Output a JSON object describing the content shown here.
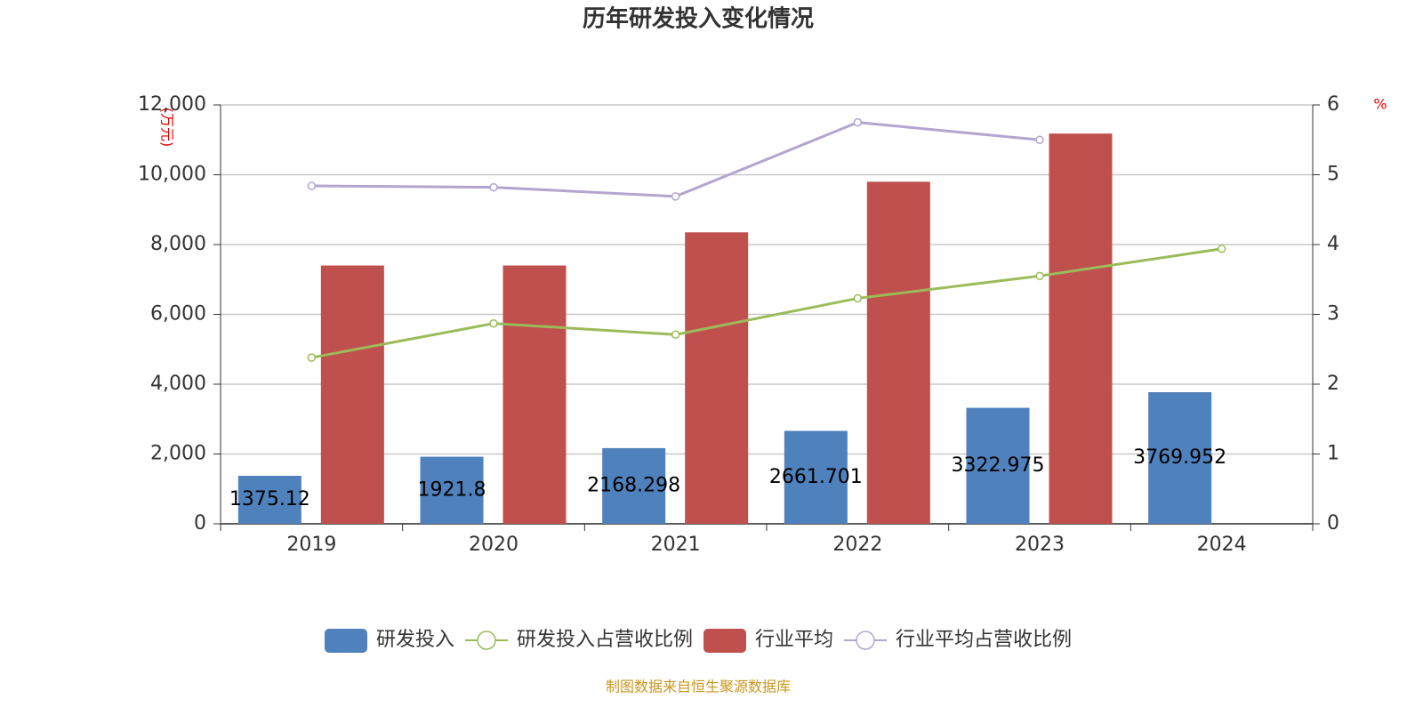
{
  "chart_data": {
    "type": "bar",
    "title": "历年研发投入变化情况",
    "y_label": "(万元)",
    "y2_label": "%",
    "categories": [
      "2019",
      "2020",
      "2021",
      "2022",
      "2023",
      "2024"
    ],
    "series": [
      {
        "name": "研发投入",
        "type": "bar",
        "color": "#4f81bd",
        "values": [
          1375.12,
          1921.8,
          2168.298,
          2661.701,
          3322.975,
          3769.952
        ],
        "value_labels": [
          "1375.12",
          "1921.8",
          "2168.298",
          "2661.701",
          "3322.975",
          "3769.952"
        ]
      },
      {
        "name": "研发投入占营收比例",
        "type": "line",
        "axis": "y2",
        "color": "#9bbb59",
        "values": [
          2.38,
          2.87,
          2.71,
          3.23,
          3.55,
          3.94
        ]
      },
      {
        "name": "行业平均",
        "type": "bar",
        "color": "#c0504d",
        "values": [
          7400,
          7400,
          8350,
          9800,
          11180,
          null
        ]
      },
      {
        "name": "行业平均占营收比例",
        "type": "line",
        "axis": "y2",
        "color": "#b3a5cf",
        "values": [
          4.84,
          4.82,
          4.69,
          5.75,
          5.5,
          null
        ]
      }
    ],
    "ylim": [
      0,
      12000
    ],
    "yticks": [
      0,
      {
        "value": 2000,
        "label": "2,000"
      },
      {
        "value": 4000,
        "label": "4,000"
      },
      {
        "value": 6000,
        "label": "6,000"
      },
      {
        "value": 8000,
        "label": "8,000"
      },
      {
        "value": 10000,
        "label": "10,000"
      },
      {
        "value": 12000,
        "label": "12,000"
      }
    ],
    "y2lim": [
      0,
      6
    ],
    "y2ticks": [
      0,
      1,
      2,
      3,
      4,
      5,
      6
    ],
    "grid": true,
    "source": "制图数据来自恒生聚源数据库"
  }
}
